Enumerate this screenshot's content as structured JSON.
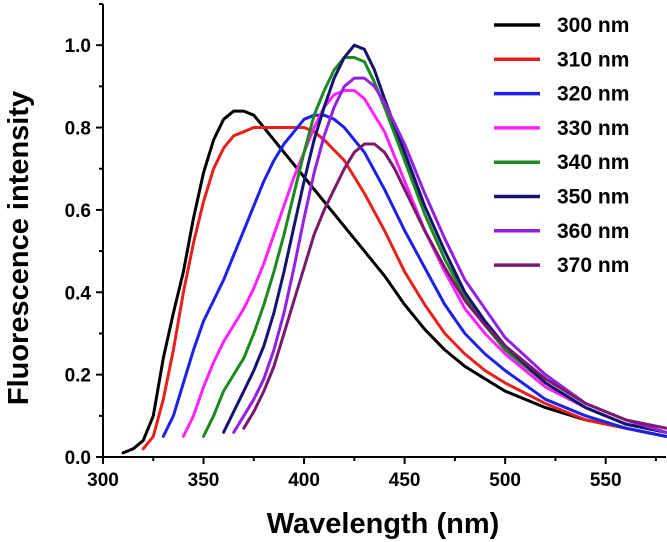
{
  "chart_data": {
    "type": "line",
    "title": "",
    "xlabel": "Wavelength (nm)",
    "ylabel": "Fluorescence intensity",
    "xlim": [
      300,
      580
    ],
    "ylim": [
      0,
      1.1
    ],
    "x_ticks": [
      300,
      350,
      400,
      450,
      500,
      550
    ],
    "y_ticks": [
      0.0,
      0.2,
      0.4,
      0.6,
      0.8,
      1.0
    ],
    "x_tick_labels": [
      "300",
      "350",
      "400",
      "450",
      "500",
      "550"
    ],
    "y_tick_labels": [
      "0.0",
      "0.2",
      "0.4",
      "0.6",
      "0.8",
      "1.0"
    ],
    "legend_position": "top-right",
    "series": [
      {
        "name": "300 nm",
        "color": "#000000",
        "x": [
          310,
          315,
          320,
          325,
          330,
          335,
          340,
          345,
          350,
          355,
          360,
          365,
          370,
          375,
          380,
          390,
          400,
          410,
          420,
          430,
          440,
          450,
          460,
          470,
          480,
          490,
          500,
          520,
          540,
          560,
          580
        ],
        "y": [
          0.01,
          0.02,
          0.04,
          0.1,
          0.24,
          0.35,
          0.45,
          0.58,
          0.69,
          0.77,
          0.82,
          0.84,
          0.84,
          0.83,
          0.8,
          0.74,
          0.68,
          0.62,
          0.56,
          0.5,
          0.44,
          0.37,
          0.31,
          0.26,
          0.22,
          0.19,
          0.16,
          0.12,
          0.09,
          0.07,
          0.05
        ]
      },
      {
        "name": "310 nm",
        "color": "#e8201c",
        "x": [
          320,
          325,
          330,
          335,
          340,
          345,
          350,
          355,
          360,
          365,
          370,
          375,
          380,
          390,
          400,
          405,
          410,
          420,
          430,
          440,
          450,
          460,
          470,
          480,
          490,
          500,
          520,
          540,
          560,
          580
        ],
        "y": [
          0.02,
          0.05,
          0.14,
          0.26,
          0.4,
          0.52,
          0.62,
          0.7,
          0.75,
          0.78,
          0.79,
          0.8,
          0.8,
          0.8,
          0.8,
          0.79,
          0.77,
          0.72,
          0.64,
          0.55,
          0.45,
          0.37,
          0.3,
          0.25,
          0.21,
          0.18,
          0.13,
          0.09,
          0.07,
          0.05
        ]
      },
      {
        "name": "320 nm",
        "color": "#1c22e8",
        "x": [
          330,
          335,
          340,
          345,
          350,
          355,
          360,
          365,
          370,
          375,
          380,
          385,
          390,
          395,
          400,
          405,
          410,
          415,
          420,
          430,
          440,
          450,
          460,
          470,
          480,
          490,
          500,
          520,
          540,
          560,
          580
        ],
        "y": [
          0.05,
          0.1,
          0.18,
          0.26,
          0.33,
          0.38,
          0.43,
          0.49,
          0.55,
          0.61,
          0.67,
          0.72,
          0.76,
          0.79,
          0.82,
          0.83,
          0.83,
          0.82,
          0.8,
          0.74,
          0.65,
          0.55,
          0.46,
          0.37,
          0.3,
          0.25,
          0.21,
          0.14,
          0.1,
          0.07,
          0.05
        ]
      },
      {
        "name": "330 nm",
        "color": "#ff22ff",
        "x": [
          340,
          345,
          350,
          355,
          360,
          365,
          370,
          375,
          380,
          385,
          390,
          395,
          400,
          405,
          410,
          415,
          420,
          425,
          430,
          440,
          450,
          460,
          470,
          480,
          490,
          500,
          520,
          540,
          560,
          580
        ],
        "y": [
          0.05,
          0.1,
          0.17,
          0.23,
          0.28,
          0.32,
          0.36,
          0.41,
          0.47,
          0.54,
          0.61,
          0.68,
          0.74,
          0.8,
          0.85,
          0.88,
          0.89,
          0.89,
          0.87,
          0.79,
          0.67,
          0.55,
          0.45,
          0.36,
          0.3,
          0.25,
          0.17,
          0.12,
          0.08,
          0.06
        ]
      },
      {
        "name": "340 nm",
        "color": "#1c8a1c",
        "x": [
          350,
          355,
          360,
          365,
          370,
          375,
          380,
          385,
          390,
          395,
          400,
          405,
          410,
          415,
          420,
          425,
          430,
          435,
          440,
          450,
          460,
          470,
          480,
          490,
          500,
          520,
          540,
          560,
          580
        ],
        "y": [
          0.05,
          0.1,
          0.16,
          0.2,
          0.24,
          0.3,
          0.37,
          0.45,
          0.54,
          0.64,
          0.74,
          0.83,
          0.89,
          0.94,
          0.97,
          0.97,
          0.96,
          0.91,
          0.85,
          0.72,
          0.59,
          0.48,
          0.39,
          0.32,
          0.26,
          0.18,
          0.12,
          0.08,
          0.06
        ]
      },
      {
        "name": "350 nm",
        "color": "#141470",
        "x": [
          360,
          365,
          370,
          375,
          380,
          385,
          390,
          395,
          400,
          405,
          410,
          415,
          420,
          425,
          430,
          435,
          440,
          450,
          460,
          470,
          480,
          490,
          500,
          520,
          540,
          560,
          580
        ],
        "y": [
          0.06,
          0.11,
          0.16,
          0.21,
          0.27,
          0.35,
          0.45,
          0.56,
          0.67,
          0.77,
          0.85,
          0.92,
          0.97,
          1.0,
          0.99,
          0.94,
          0.87,
          0.74,
          0.61,
          0.5,
          0.4,
          0.33,
          0.27,
          0.18,
          0.12,
          0.08,
          0.06
        ]
      },
      {
        "name": "360 nm",
        "color": "#9420e0",
        "x": [
          365,
          370,
          375,
          380,
          385,
          390,
          395,
          400,
          405,
          410,
          415,
          420,
          425,
          430,
          435,
          440,
          450,
          460,
          470,
          480,
          490,
          500,
          520,
          540,
          560,
          580
        ],
        "y": [
          0.06,
          0.1,
          0.14,
          0.19,
          0.26,
          0.35,
          0.46,
          0.58,
          0.69,
          0.78,
          0.85,
          0.9,
          0.92,
          0.92,
          0.9,
          0.86,
          0.76,
          0.64,
          0.53,
          0.43,
          0.36,
          0.29,
          0.2,
          0.13,
          0.09,
          0.06
        ]
      },
      {
        "name": "370 nm",
        "color": "#7a1a6e",
        "x": [
          370,
          375,
          380,
          385,
          390,
          395,
          400,
          405,
          410,
          415,
          420,
          425,
          430,
          435,
          440,
          445,
          450,
          460,
          470,
          480,
          490,
          500,
          520,
          540,
          560,
          580
        ],
        "y": [
          0.07,
          0.11,
          0.16,
          0.22,
          0.3,
          0.38,
          0.46,
          0.54,
          0.6,
          0.65,
          0.7,
          0.74,
          0.76,
          0.76,
          0.74,
          0.7,
          0.65,
          0.55,
          0.46,
          0.38,
          0.32,
          0.27,
          0.19,
          0.13,
          0.09,
          0.07
        ]
      }
    ]
  }
}
